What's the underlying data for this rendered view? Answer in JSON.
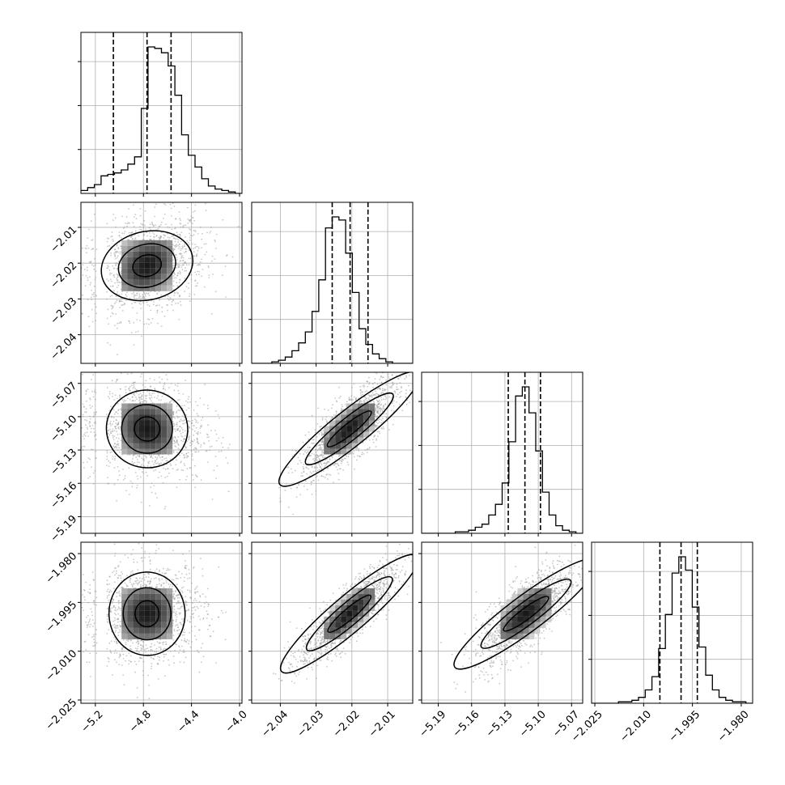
{
  "chart_data": {
    "type": "corner",
    "parameters": [
      {
        "range": [
          -5.32,
          -3.98
        ],
        "ticks": [
          -5.2,
          -4.8,
          -4.4,
          -4.0
        ],
        "tick_labels": [
          "−5.2",
          "−4.8",
          "−4.4",
          "−4.0"
        ],
        "quantiles": [
          -5.05,
          -4.77,
          -4.57
        ],
        "center": -4.77
      },
      {
        "range": [
          -2.048,
          -2.003
        ],
        "ticks": [
          -2.04,
          -2.03,
          -2.02,
          -2.01
        ],
        "tick_labels": [
          "−2.04",
          "−2.03",
          "−2.02",
          "−2.01"
        ],
        "quantiles": [
          -2.0255,
          -2.0205,
          -2.0155
        ],
        "center": -2.0207
      },
      {
        "range": [
          -5.205,
          -5.06
        ],
        "ticks": [
          -5.19,
          -5.16,
          -5.13,
          -5.1,
          -5.07
        ],
        "tick_labels": [
          "−5.19",
          "−5.16",
          "−5.13",
          "−5.10",
          "−5.07"
        ],
        "quantiles": [
          -5.127,
          -5.112,
          -5.098
        ],
        "center": -5.111
      },
      {
        "range": [
          -2.026,
          -1.9765
        ],
        "ticks": [
          -2.025,
          -2.01,
          -1.995,
          -1.98
        ],
        "tick_labels": [
          "−2.025",
          "−2.010",
          "−1.995",
          "−1.980"
        ],
        "quantiles": [
          -2.005,
          -1.9985,
          -1.9935
        ],
        "center": -1.9985
      }
    ],
    "histograms": [
      [
        2,
        4,
        6,
        12,
        13,
        14,
        16,
        20,
        25,
        58,
        100,
        99,
        96,
        87,
        67,
        40,
        26,
        18,
        10,
        5,
        3,
        2,
        1,
        0
      ],
      [
        0,
        0,
        0,
        1,
        2,
        4,
        8,
        13,
        20,
        33,
        53,
        86,
        93,
        91,
        70,
        45,
        22,
        12,
        6,
        3,
        1,
        0,
        0,
        0
      ],
      [
        0,
        0,
        0,
        0,
        0,
        1,
        1,
        2,
        4,
        6,
        12,
        19,
        33,
        60,
        90,
        96,
        79,
        54,
        27,
        12,
        5,
        2,
        1,
        0
      ],
      [
        0,
        0,
        0,
        0,
        1,
        1,
        2,
        4,
        9,
        18,
        37,
        60,
        88,
        99,
        90,
        65,
        38,
        19,
        9,
        4,
        2,
        1,
        1,
        0
      ]
    ],
    "pairs": [
      {
        "row": 1,
        "col": 0,
        "corr": 0.25
      },
      {
        "row": 2,
        "col": 0,
        "corr": -0.12
      },
      {
        "row": 2,
        "col": 1,
        "corr": 0.8
      },
      {
        "row": 3,
        "col": 0,
        "corr": 0.05
      },
      {
        "row": 3,
        "col": 1,
        "corr": 0.85
      },
      {
        "row": 3,
        "col": 2,
        "corr": 0.75
      }
    ],
    "grid": true,
    "quantile_lines": "dashed"
  }
}
